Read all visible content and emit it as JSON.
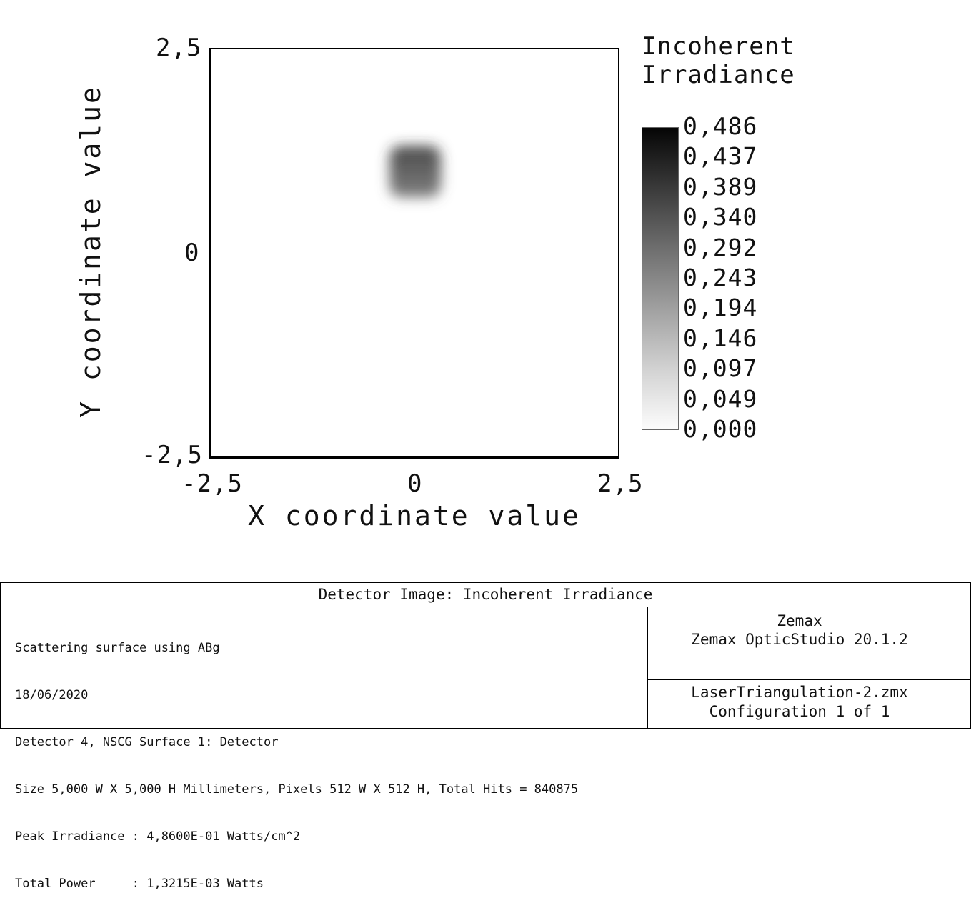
{
  "chart_data": {
    "type": "heatmap",
    "title": "",
    "xlabel": "X coordinate value",
    "ylabel": "Y coordinate value",
    "xlim": [
      -2.5,
      2.5
    ],
    "ylim": [
      -2.5,
      2.5
    ],
    "x_tick_labels": [
      "-2,5",
      "0",
      "2,5"
    ],
    "y_tick_labels": [
      "2,5",
      "0",
      "-2,5"
    ],
    "spot": {
      "x_center": 0.0,
      "y_center": 1.0,
      "width": 0.7,
      "height": 0.7,
      "peak": 0.486
    },
    "colormap": "grayscale-inverted",
    "grid": false,
    "legend": {
      "title_line1": "Incoherent",
      "title_line2": "Irradiance",
      "tick_labels": [
        "0,486",
        "0,437",
        "0,389",
        "0,340",
        "0,292",
        "0,243",
        "0,194",
        "0,146",
        "0,097",
        "0,049",
        "0,000"
      ],
      "placement": "right"
    }
  },
  "info": {
    "header": "Detector Image: Incoherent Irradiance",
    "lines": [
      "Scattering surface using ABg",
      "18/06/2020",
      "Detector 4, NSCG Surface 1: Detector",
      "Size 5,000 W X 5,000 H Millimeters, Pixels 512 W X 512 H, Total Hits = 840875",
      "Peak Irradiance : 4,8600E-01 Watts/cm^2",
      "Total Power     : 1,3215E-03 Watts"
    ],
    "software_line1": "Zemax",
    "software_line2": "Zemax OpticStudio 20.1.2",
    "file_line1": "LaserTriangulation-2.zmx",
    "file_line2": "Configuration 1 of 1"
  }
}
